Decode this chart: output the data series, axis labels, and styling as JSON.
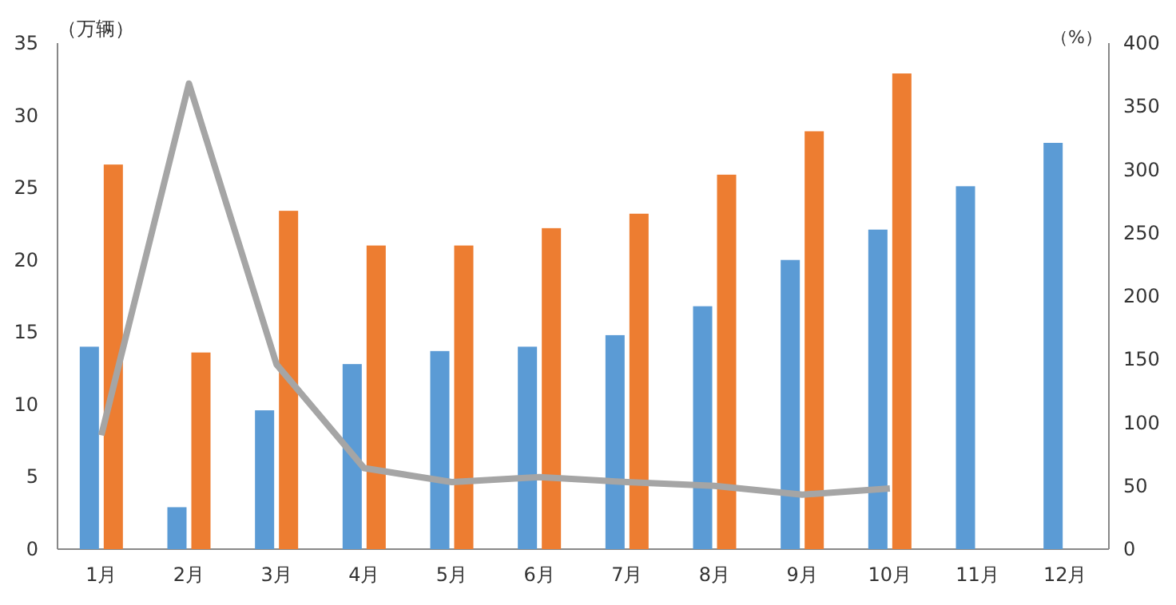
{
  "chart_data": {
    "type": "bar",
    "ylabel": "（万辆）",
    "y2label": "（%）",
    "categories": [
      "1月",
      "2月",
      "3月",
      "4月",
      "5月",
      "6月",
      "7月",
      "8月",
      "9月",
      "10月",
      "11月",
      "12月"
    ],
    "series": [
      {
        "color": "#5b9bd5",
        "values": [
          14.0,
          2.9,
          9.6,
          12.8,
          13.7,
          14.0,
          14.8,
          16.8,
          20.0,
          22.1,
          25.1,
          28.1
        ]
      },
      {
        "color": "#ed7d31",
        "values": [
          26.6,
          13.6,
          23.4,
          21.0,
          21.0,
          22.2,
          23.2,
          25.9,
          28.9,
          32.9,
          null,
          null
        ]
      },
      {
        "type": "line",
        "axis": "y2",
        "color": "#a5a5a5",
        "values": [
          90,
          368,
          146,
          64,
          53,
          57,
          53,
          50,
          43,
          48,
          null,
          null
        ]
      }
    ],
    "ylim": [
      0,
      35
    ],
    "yticks": [
      0,
      5,
      10,
      15,
      20,
      25,
      30,
      35
    ],
    "y2lim": [
      0,
      400
    ],
    "y2ticks": [
      0,
      50,
      100,
      150,
      200,
      250,
      300,
      350,
      400
    ],
    "grid": false
  }
}
